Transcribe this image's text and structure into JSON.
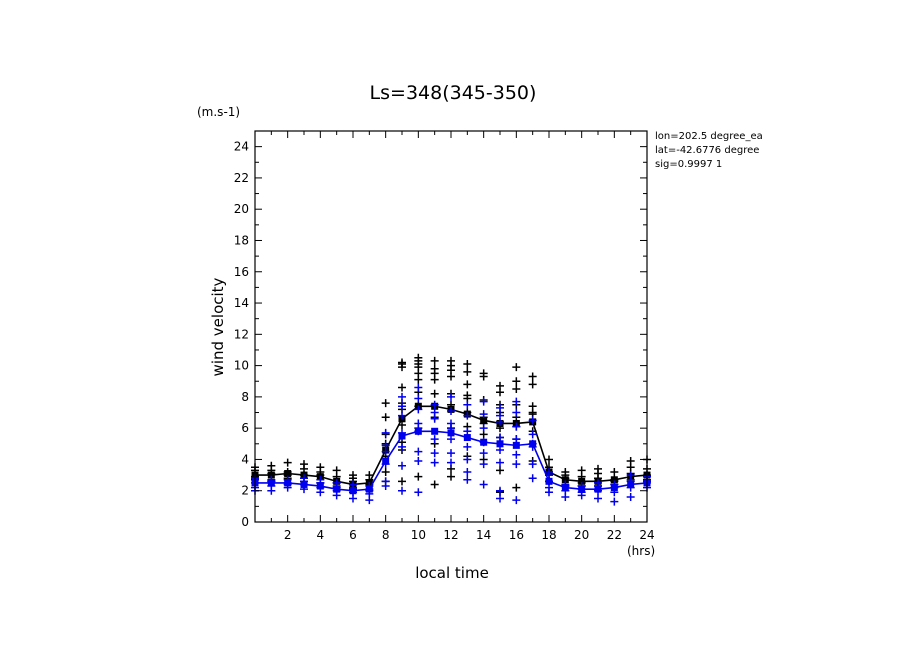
{
  "chart_data": {
    "type": "scatter",
    "title": "Ls=348(345-350)",
    "xlabel": "local time",
    "ylabel": "wind velocity",
    "x_unit": "(hrs)",
    "y_unit": "(m.s-1)",
    "xlim": [
      0,
      24
    ],
    "ylim": [
      0,
      25
    ],
    "x_ticks": [
      2,
      4,
      6,
      8,
      10,
      12,
      14,
      16,
      18,
      20,
      22,
      24
    ],
    "y_ticks": [
      0,
      2,
      4,
      6,
      8,
      10,
      12,
      14,
      16,
      18,
      20,
      22,
      24
    ],
    "annotations": [
      "lon=202.5 degree_ea",
      "lat=-42.6776 degree",
      "sig=0.9997 1"
    ],
    "x": [
      0,
      1,
      2,
      3,
      4,
      5,
      6,
      7,
      8,
      9,
      10,
      11,
      12,
      13,
      14,
      15,
      16,
      17,
      18,
      19,
      20,
      21,
      22,
      23,
      24
    ],
    "series": [
      {
        "name": "black",
        "color": "#000000",
        "mean": [
          3.0,
          3.0,
          3.1,
          3.0,
          2.9,
          2.6,
          2.4,
          2.5,
          4.6,
          6.6,
          7.4,
          7.4,
          7.2,
          6.9,
          6.5,
          6.3,
          6.3,
          6.4,
          3.2,
          2.7,
          2.6,
          2.6,
          2.7,
          2.9,
          3.0
        ],
        "scatter": [
          [
            3.3,
            2.9,
            2.7,
            3.5
          ],
          [
            3.1,
            2.6,
            3.6,
            3.3
          ],
          [
            3.2,
            2.8,
            3.8,
            3.0
          ],
          [
            3.0,
            2.6,
            3.4,
            3.7
          ],
          [
            3.5,
            2.5,
            3.2,
            3.0
          ],
          [
            2.9,
            2.2,
            3.3,
            2.5
          ],
          [
            2.6,
            2.1,
            3.0,
            2.8
          ],
          [
            2.4,
            2.0,
            3.0,
            2.7
          ],
          [
            7.6,
            5.6,
            4.2,
            3.2,
            2.6,
            6.7,
            5.0
          ],
          [
            10.1,
            9.9,
            8.6,
            7.6,
            6.2,
            5.1,
            4.6,
            2.6,
            7.2,
            10.2
          ],
          [
            10.5,
            10.3,
            9.9,
            9.5,
            8.3,
            7.4,
            6.0,
            2.9,
            10.1,
            9.1
          ],
          [
            9.8,
            9.1,
            8.2,
            6.7,
            5.0,
            2.4,
            10.3,
            9.5
          ],
          [
            10.0,
            9.7,
            9.3,
            8.2,
            7.5,
            6.0,
            3.4,
            2.9,
            10.3
          ],
          [
            9.6,
            8.8,
            7.9,
            7.0,
            6.1,
            4.2,
            10.1,
            8.1
          ],
          [
            9.5,
            9.3,
            7.8,
            6.7,
            5.6,
            4.0,
            6.3
          ],
          [
            8.7,
            8.3,
            7.5,
            7.0,
            6.0,
            5.4,
            3.3,
            1.9
          ],
          [
            9.9,
            9.0,
            8.5,
            7.5,
            6.7,
            6.1,
            5.3,
            2.2
          ],
          [
            9.3,
            8.8,
            7.4,
            7.0,
            6.9,
            5.8,
            3.9
          ],
          [
            4.0,
            3.5,
            3.2,
            3.0,
            2.6
          ],
          [
            3.2,
            3.0,
            2.8,
            2.3
          ],
          [
            3.3,
            2.9,
            2.5,
            2.3
          ],
          [
            3.4,
            3.1,
            2.8,
            2.3
          ],
          [
            3.2,
            2.7,
            2.4,
            2.6
          ],
          [
            3.5,
            3.1,
            2.6,
            3.9
          ],
          [
            4.0,
            3.4,
            3.0,
            2.7
          ]
        ]
      },
      {
        "name": "blue",
        "color": "#0000ee",
        "mean": [
          2.5,
          2.5,
          2.5,
          2.4,
          2.3,
          2.1,
          2.0,
          2.1,
          3.9,
          5.5,
          5.8,
          5.8,
          5.7,
          5.4,
          5.1,
          5.0,
          4.9,
          5.0,
          2.6,
          2.2,
          2.1,
          2.1,
          2.2,
          2.4,
          2.5
        ],
        "scatter": [
          [
            2.8,
            2.5,
            2.2,
            2.0
          ],
          [
            2.6,
            2.3,
            2.0,
            2.7
          ],
          [
            2.7,
            2.5,
            2.2,
            2.4
          ],
          [
            2.6,
            2.4,
            2.1,
            2.8
          ],
          [
            2.5,
            2.2,
            1.9,
            2.7
          ],
          [
            2.3,
            2.0,
            1.7,
            2.5
          ],
          [
            2.2,
            1.9,
            1.5,
            2.4
          ],
          [
            2.1,
            1.8,
            1.4,
            2.3
          ],
          [
            5.7,
            4.5,
            3.7,
            2.6,
            2.3,
            4.9
          ],
          [
            8.0,
            6.8,
            5.7,
            4.8,
            3.6,
            2.0,
            7.4
          ],
          [
            8.6,
            7.9,
            7.2,
            6.3,
            5.8,
            4.5,
            3.9,
            1.9
          ],
          [
            7.5,
            6.6,
            5.3,
            4.4,
            3.8,
            7.0
          ],
          [
            8.0,
            7.1,
            6.3,
            5.3,
            4.4,
            3.8,
            6.0
          ],
          [
            7.5,
            6.8,
            5.8,
            4.8,
            3.2,
            2.7,
            4.0
          ],
          [
            7.7,
            6.9,
            6.0,
            5.1,
            4.4,
            3.7,
            2.4
          ],
          [
            7.3,
            6.4,
            5.4,
            4.6,
            3.8,
            1.5,
            2.0,
            6.8
          ],
          [
            7.7,
            7.0,
            6.1,
            5.3,
            4.3,
            3.7,
            1.4
          ],
          [
            6.5,
            5.6,
            4.8,
            3.7,
            2.8,
            5.0
          ],
          [
            3.2,
            2.6,
            2.2,
            1.9,
            3.0
          ],
          [
            2.4,
            2.0,
            1.6,
            2.3
          ],
          [
            2.3,
            1.9,
            1.7,
            2.1
          ],
          [
            2.3,
            2.0,
            1.5,
            2.5
          ],
          [
            2.4,
            1.9,
            1.3,
            2.2
          ],
          [
            2.7,
            2.2,
            1.6,
            3.0
          ],
          [
            2.9,
            2.6,
            2.2,
            2.5
          ]
        ]
      }
    ]
  }
}
